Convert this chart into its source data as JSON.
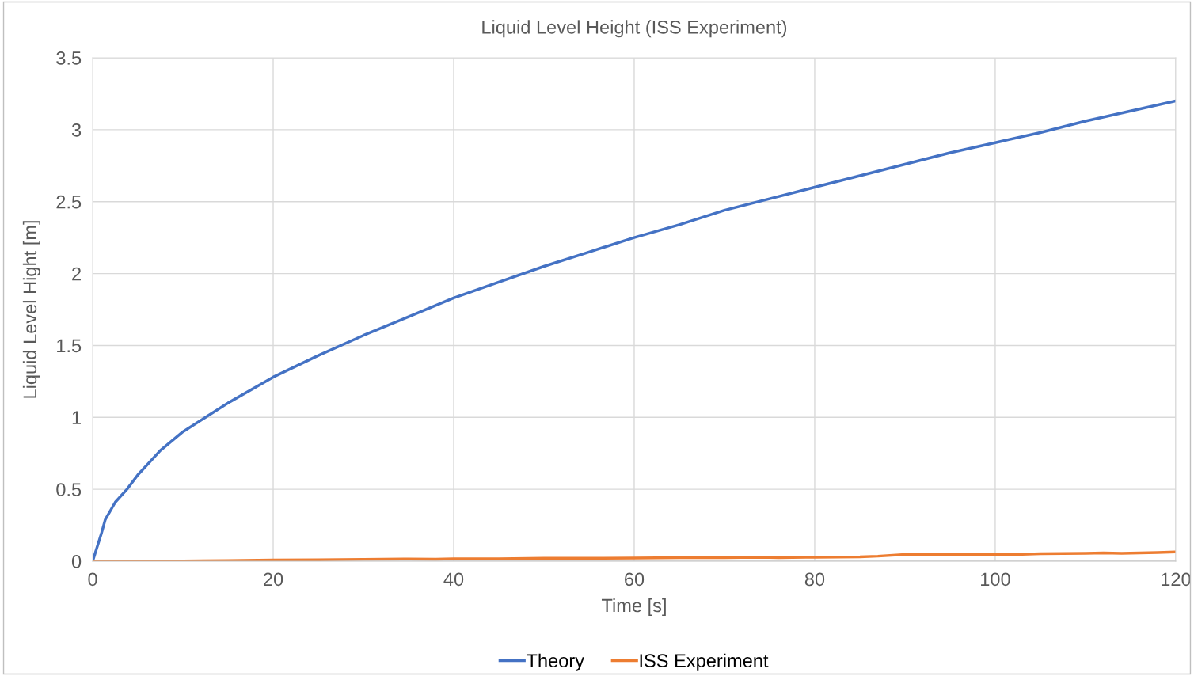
{
  "chart_data": {
    "type": "line",
    "title": "Liquid Level Height (ISS Experiment)",
    "xlabel": "Time [s]",
    "ylabel": "Liquid Level Hight [m]",
    "xlim": [
      0,
      120
    ],
    "xticks": [
      0,
      20,
      40,
      60,
      80,
      100,
      120
    ],
    "ylim": [
      0,
      3.5
    ],
    "yticks": [
      0,
      0.5,
      1,
      1.5,
      2,
      2.5,
      3,
      3.5
    ],
    "grid": true,
    "legend": "bottom",
    "marker": "none",
    "line_style": "solid",
    "series": [
      {
        "name": "Theory",
        "color": "#4472c4",
        "x": [
          0,
          1,
          1.4,
          2.5,
          3.8,
          5,
          7.5,
          10,
          12.5,
          15,
          20,
          25,
          30,
          35,
          40,
          45,
          50,
          55,
          60,
          65,
          70,
          75,
          80,
          85,
          90,
          95,
          100,
          105,
          110,
          115,
          120
        ],
        "values": [
          0,
          0.2,
          0.29,
          0.41,
          0.5,
          0.6,
          0.77,
          0.9,
          1.0,
          1.1,
          1.28,
          1.43,
          1.57,
          1.7,
          1.83,
          1.94,
          2.05,
          2.15,
          2.25,
          2.34,
          2.44,
          2.52,
          2.6,
          2.68,
          2.76,
          2.84,
          2.91,
          2.98,
          3.06,
          3.13,
          3.2
        ]
      },
      {
        "name": "ISS Experiment",
        "color": "#ed7d31",
        "x": [
          0,
          5,
          10,
          15,
          20,
          25,
          30,
          35,
          38,
          40,
          45,
          50,
          55,
          60,
          65,
          70,
          74,
          76,
          80,
          85,
          87,
          90,
          95,
          98,
          100,
          103,
          105,
          110,
          112,
          114,
          118,
          120
        ],
        "values": [
          0,
          0,
          0.002,
          0.004,
          0.008,
          0.01,
          0.013,
          0.015,
          0.014,
          0.017,
          0.017,
          0.02,
          0.02,
          0.022,
          0.025,
          0.025,
          0.028,
          0.025,
          0.028,
          0.03,
          0.035,
          0.047,
          0.047,
          0.045,
          0.047,
          0.048,
          0.052,
          0.055,
          0.058,
          0.055,
          0.06,
          0.065
        ]
      }
    ]
  }
}
